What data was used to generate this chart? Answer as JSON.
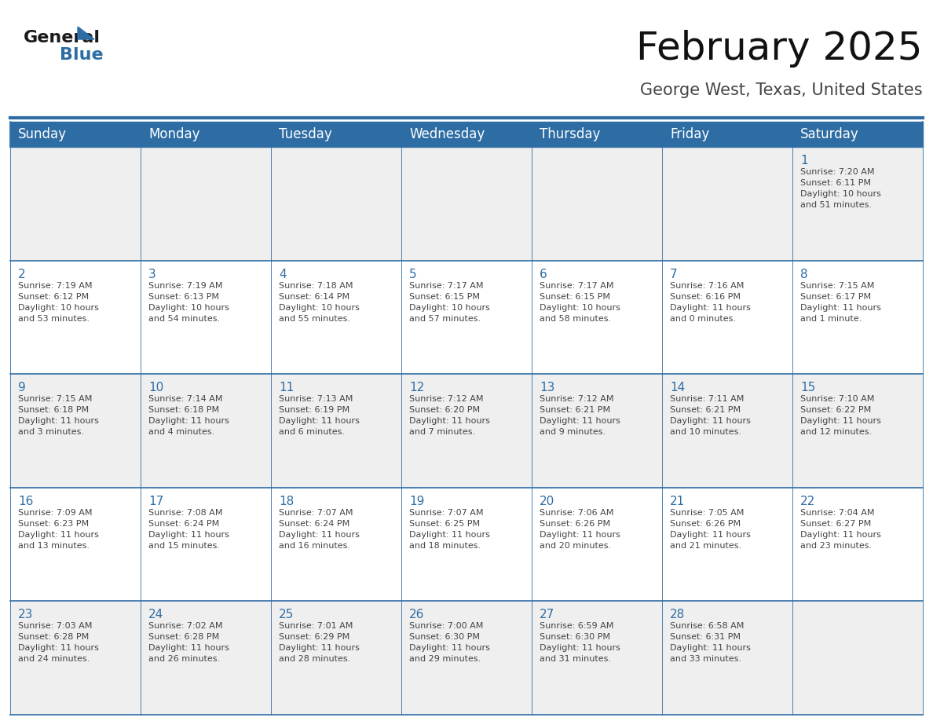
{
  "title": "February 2025",
  "subtitle": "George West, Texas, United States",
  "header_bg": "#2e6da4",
  "header_text_color": "#ffffff",
  "cell_bg_light": "#efefef",
  "cell_bg_white": "#ffffff",
  "day_number_color": "#2e6da4",
  "text_color": "#444444",
  "border_color": "#2e6da4",
  "days_of_week": [
    "Sunday",
    "Monday",
    "Tuesday",
    "Wednesday",
    "Thursday",
    "Friday",
    "Saturday"
  ],
  "weeks": [
    [
      {
        "day": null,
        "info": null
      },
      {
        "day": null,
        "info": null
      },
      {
        "day": null,
        "info": null
      },
      {
        "day": null,
        "info": null
      },
      {
        "day": null,
        "info": null
      },
      {
        "day": null,
        "info": null
      },
      {
        "day": 1,
        "info": "Sunrise: 7:20 AM\nSunset: 6:11 PM\nDaylight: 10 hours\nand 51 minutes."
      }
    ],
    [
      {
        "day": 2,
        "info": "Sunrise: 7:19 AM\nSunset: 6:12 PM\nDaylight: 10 hours\nand 53 minutes."
      },
      {
        "day": 3,
        "info": "Sunrise: 7:19 AM\nSunset: 6:13 PM\nDaylight: 10 hours\nand 54 minutes."
      },
      {
        "day": 4,
        "info": "Sunrise: 7:18 AM\nSunset: 6:14 PM\nDaylight: 10 hours\nand 55 minutes."
      },
      {
        "day": 5,
        "info": "Sunrise: 7:17 AM\nSunset: 6:15 PM\nDaylight: 10 hours\nand 57 minutes."
      },
      {
        "day": 6,
        "info": "Sunrise: 7:17 AM\nSunset: 6:15 PM\nDaylight: 10 hours\nand 58 minutes."
      },
      {
        "day": 7,
        "info": "Sunrise: 7:16 AM\nSunset: 6:16 PM\nDaylight: 11 hours\nand 0 minutes."
      },
      {
        "day": 8,
        "info": "Sunrise: 7:15 AM\nSunset: 6:17 PM\nDaylight: 11 hours\nand 1 minute."
      }
    ],
    [
      {
        "day": 9,
        "info": "Sunrise: 7:15 AM\nSunset: 6:18 PM\nDaylight: 11 hours\nand 3 minutes."
      },
      {
        "day": 10,
        "info": "Sunrise: 7:14 AM\nSunset: 6:18 PM\nDaylight: 11 hours\nand 4 minutes."
      },
      {
        "day": 11,
        "info": "Sunrise: 7:13 AM\nSunset: 6:19 PM\nDaylight: 11 hours\nand 6 minutes."
      },
      {
        "day": 12,
        "info": "Sunrise: 7:12 AM\nSunset: 6:20 PM\nDaylight: 11 hours\nand 7 minutes."
      },
      {
        "day": 13,
        "info": "Sunrise: 7:12 AM\nSunset: 6:21 PM\nDaylight: 11 hours\nand 9 minutes."
      },
      {
        "day": 14,
        "info": "Sunrise: 7:11 AM\nSunset: 6:21 PM\nDaylight: 11 hours\nand 10 minutes."
      },
      {
        "day": 15,
        "info": "Sunrise: 7:10 AM\nSunset: 6:22 PM\nDaylight: 11 hours\nand 12 minutes."
      }
    ],
    [
      {
        "day": 16,
        "info": "Sunrise: 7:09 AM\nSunset: 6:23 PM\nDaylight: 11 hours\nand 13 minutes."
      },
      {
        "day": 17,
        "info": "Sunrise: 7:08 AM\nSunset: 6:24 PM\nDaylight: 11 hours\nand 15 minutes."
      },
      {
        "day": 18,
        "info": "Sunrise: 7:07 AM\nSunset: 6:24 PM\nDaylight: 11 hours\nand 16 minutes."
      },
      {
        "day": 19,
        "info": "Sunrise: 7:07 AM\nSunset: 6:25 PM\nDaylight: 11 hours\nand 18 minutes."
      },
      {
        "day": 20,
        "info": "Sunrise: 7:06 AM\nSunset: 6:26 PM\nDaylight: 11 hours\nand 20 minutes."
      },
      {
        "day": 21,
        "info": "Sunrise: 7:05 AM\nSunset: 6:26 PM\nDaylight: 11 hours\nand 21 minutes."
      },
      {
        "day": 22,
        "info": "Sunrise: 7:04 AM\nSunset: 6:27 PM\nDaylight: 11 hours\nand 23 minutes."
      }
    ],
    [
      {
        "day": 23,
        "info": "Sunrise: 7:03 AM\nSunset: 6:28 PM\nDaylight: 11 hours\nand 24 minutes."
      },
      {
        "day": 24,
        "info": "Sunrise: 7:02 AM\nSunset: 6:28 PM\nDaylight: 11 hours\nand 26 minutes."
      },
      {
        "day": 25,
        "info": "Sunrise: 7:01 AM\nSunset: 6:29 PM\nDaylight: 11 hours\nand 28 minutes."
      },
      {
        "day": 26,
        "info": "Sunrise: 7:00 AM\nSunset: 6:30 PM\nDaylight: 11 hours\nand 29 minutes."
      },
      {
        "day": 27,
        "info": "Sunrise: 6:59 AM\nSunset: 6:30 PM\nDaylight: 11 hours\nand 31 minutes."
      },
      {
        "day": 28,
        "info": "Sunrise: 6:58 AM\nSunset: 6:31 PM\nDaylight: 11 hours\nand 33 minutes."
      },
      {
        "day": null,
        "info": null
      }
    ]
  ],
  "logo_general_color": "#1a1a1a",
  "logo_blue_color": "#2e6da4",
  "title_fontsize": 36,
  "subtitle_fontsize": 15,
  "header_fontsize": 12,
  "day_number_fontsize": 11,
  "info_fontsize": 8,
  "logo_fontsize": 16
}
